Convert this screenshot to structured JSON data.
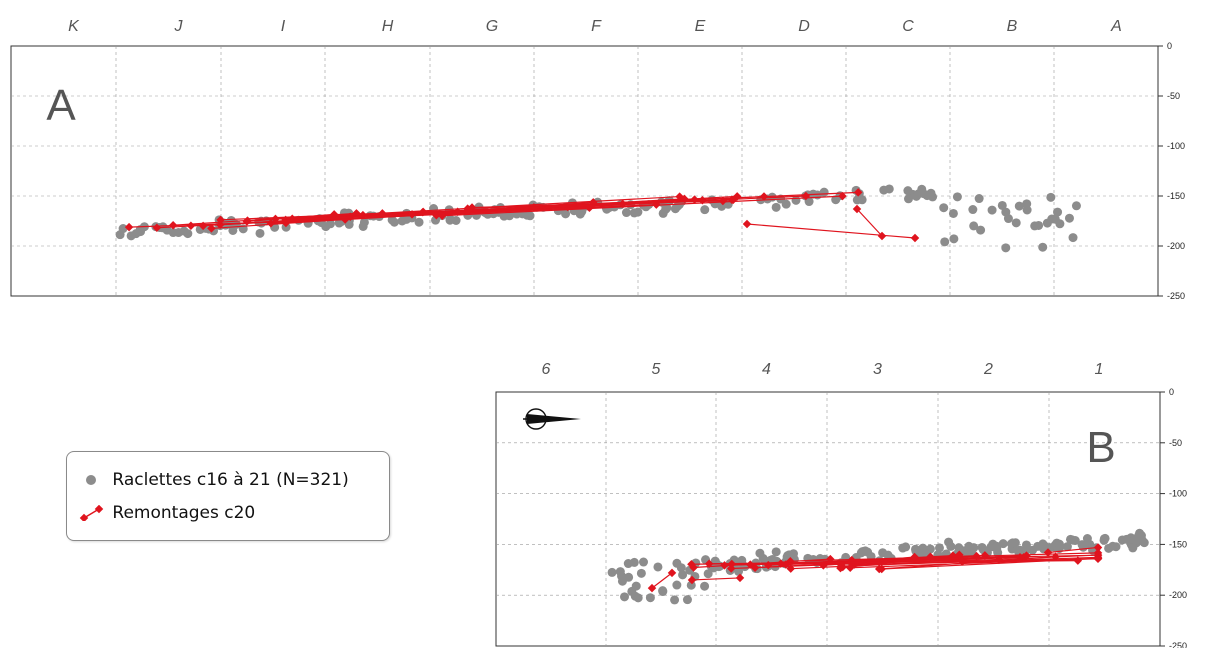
{
  "legend": {
    "points_label": "Raclettes c16 à 21 (N=321)",
    "refit_label": "Remontages c20"
  },
  "colors": {
    "points": "#8c8c8c",
    "refits": "#e0141e",
    "grid": "#9a9a9a",
    "frame": "#333333"
  },
  "chart_data": [
    {
      "type": "scatter",
      "panel_label": "A",
      "x_ticks": [
        "K",
        "J",
        "I",
        "H",
        "G",
        "F",
        "E",
        "D",
        "C",
        "B",
        "A"
      ],
      "y_ticks": [
        "0",
        "-50",
        "-100",
        "-150",
        "-200",
        "-250"
      ],
      "ylim": [
        -250,
        0
      ],
      "grid": true,
      "series": [
        {
          "kind": "points",
          "x": [],
          "y": []
        },
        {
          "kind": "refits",
          "x": [],
          "y": []
        }
      ]
    },
    {
      "type": "scatter",
      "panel_label": "B",
      "north_arrow": true,
      "x_ticks": [
        "6",
        "5",
        "4",
        "3",
        "2",
        "1"
      ],
      "y_ticks": [
        "0",
        "-50",
        "-100",
        "-150",
        "-200",
        "-250"
      ],
      "ylim": [
        -250,
        0
      ],
      "grid": true,
      "series": [
        {
          "kind": "points",
          "x": [],
          "y": []
        },
        {
          "kind": "refits",
          "x": [],
          "y": []
        }
      ]
    }
  ]
}
